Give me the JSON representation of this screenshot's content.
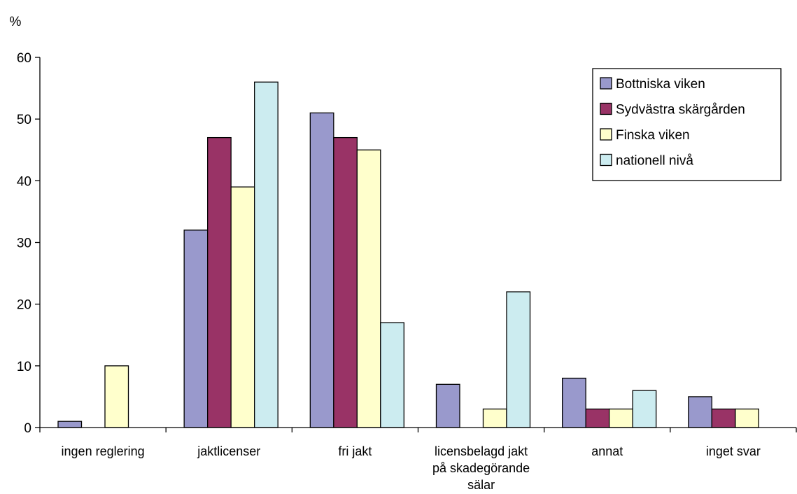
{
  "chart_data": {
    "type": "bar",
    "ylabel": "%",
    "ylim": [
      0,
      60
    ],
    "yticks": [
      "0",
      "10",
      "20",
      "30",
      "40",
      "50",
      "60"
    ],
    "grid": false,
    "legend_position": "top-right",
    "categories": [
      [
        "ingen reglering"
      ],
      [
        "jaktlicenser"
      ],
      [
        "fri jakt"
      ],
      [
        "licensbelagd jakt",
        "på skadegörande",
        "sälar"
      ],
      [
        "annat"
      ],
      [
        "inget svar"
      ]
    ],
    "series": [
      {
        "name": "Bottniska viken",
        "color": "#9999cc",
        "values": [
          1,
          32,
          51,
          7,
          8,
          5
        ]
      },
      {
        "name": "Sydvästra skärgården",
        "color": "#993366",
        "values": [
          0,
          47,
          47,
          0,
          3,
          3
        ]
      },
      {
        "name": "Finska viken",
        "color": "#ffffcc",
        "values": [
          10,
          39,
          45,
          3,
          3,
          3
        ]
      },
      {
        "name": "nationell nivå",
        "color": "#ccecf0",
        "values": [
          0,
          56,
          17,
          22,
          6,
          0
        ]
      }
    ]
  }
}
